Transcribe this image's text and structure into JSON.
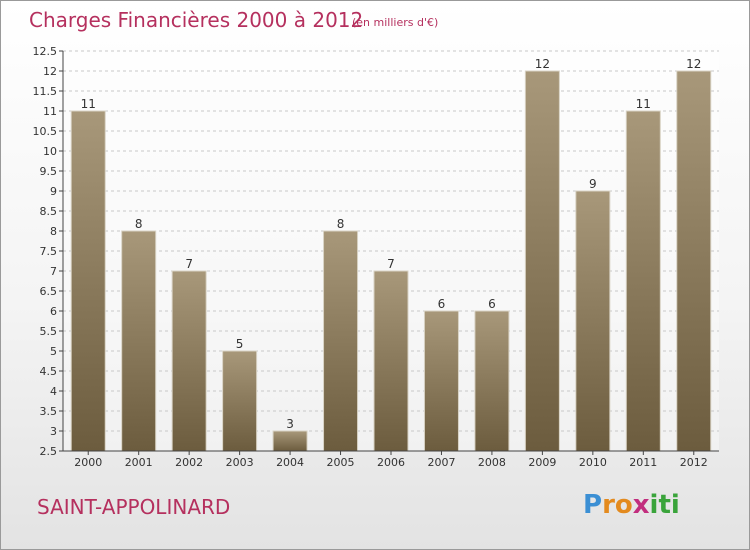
{
  "header": {
    "title": "Charges Financières 2000 à 2012",
    "subtitle": "(en milliers d'€)"
  },
  "footer": {
    "commune": "SAINT-APPOLINARD",
    "logo": {
      "letters": [
        "P",
        "r",
        "o",
        "x",
        "i",
        "t",
        "i"
      ],
      "colors": [
        "#3b8fd4",
        "#e38a1e",
        "#e38a1e",
        "#c22e7e",
        "#3aa43b",
        "#3aa43b",
        "#3aa43b"
      ]
    }
  },
  "colors": {
    "bar_top": "#a8987a",
    "bar_bottom": "#6c5c3e",
    "title": "#b5305e",
    "grid": "#c8c8c8"
  },
  "chart_data": {
    "type": "bar",
    "title": "Charges Financières 2000 à 2012",
    "subtitle": "(en milliers d'€)",
    "categories": [
      "2000",
      "2001",
      "2002",
      "2003",
      "2004",
      "2005",
      "2006",
      "2007",
      "2008",
      "2009",
      "2010",
      "2011",
      "2012"
    ],
    "values": [
      11,
      8,
      7,
      5,
      3,
      8,
      7,
      6,
      6,
      12,
      9,
      11,
      12
    ],
    "data_labels": [
      "11",
      "8",
      "7",
      "5",
      "3",
      "8",
      "7",
      "6",
      "6",
      "12",
      "9",
      "11",
      "12"
    ],
    "ylim": [
      2.5,
      12.5
    ],
    "yticks": [
      "2.5",
      "3",
      "3.5",
      "4",
      "4.5",
      "5",
      "5.5",
      "6",
      "6.5",
      "7",
      "7.5",
      "8",
      "8.5",
      "9",
      "9.5",
      "10",
      "10.5",
      "11",
      "11.5",
      "12",
      "12.5"
    ],
    "grid": true,
    "legend": "none"
  }
}
